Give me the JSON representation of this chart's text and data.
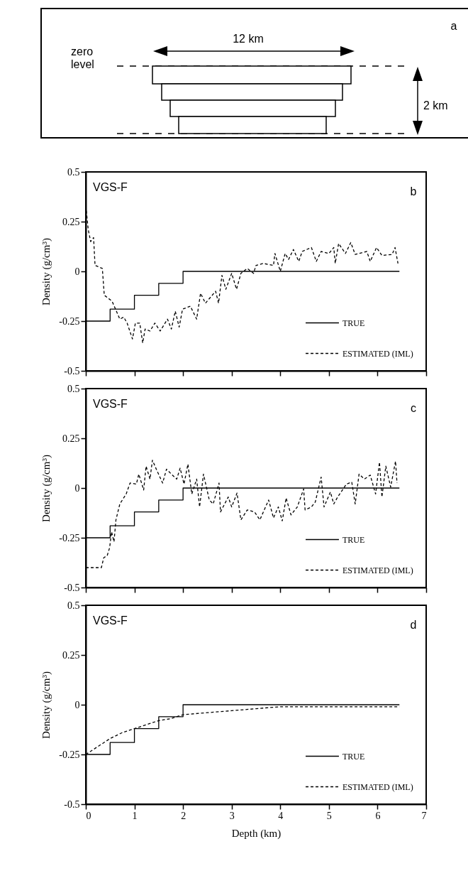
{
  "chart_data": [
    {
      "type": "other",
      "annotations": [
        "12 km",
        "zero level",
        "2 km",
        "a"
      ]
    },
    {
      "type": "line",
      "ylabel": "Density  (g/cm³)",
      "annotations": [
        "VGS-F",
        "b"
      ],
      "xlim": [
        0,
        7
      ],
      "xticks": [
        0,
        1,
        2,
        3,
        4,
        5,
        6,
        7
      ],
      "ylim": [
        -0.5,
        0.5
      ],
      "yticks": [
        -0.5,
        -0.25,
        0,
        0.25,
        0.5
      ],
      "tick_labels": "y",
      "legend": "bottom right",
      "grid": false,
      "series": [
        {
          "name": "TRUE",
          "type": "step",
          "color": "#000000",
          "line_style": "solid",
          "x": [
            0,
            0.5,
            1,
            1.5,
            2,
            6.45
          ],
          "values": [
            -0.25,
            -0.19,
            -0.12,
            -0.06,
            0,
            0
          ]
        },
        {
          "name": "ESTIMATED (IML)",
          "type": "line",
          "color": "#000000",
          "line_style": "dashed",
          "x": [
            0,
            0.05,
            0.1,
            0.16,
            0.19,
            0.34,
            0.38,
            0.54,
            0.7,
            0.78,
            0.85,
            0.96,
            1.02,
            1.11,
            1.17,
            1.22,
            1.32,
            1.42,
            1.53,
            1.68,
            1.76,
            1.84,
            1.92,
            1.99,
            2.15,
            2.28,
            2.36,
            2.46,
            2.67,
            2.73,
            2.8,
            2.88,
            3.0,
            3.1,
            3.19,
            3.32,
            3.45,
            3.5,
            3.65,
            3.86,
            3.89,
            4.0,
            4.1,
            4.17,
            4.27,
            4.38,
            4.45,
            4.64,
            4.74,
            4.84,
            5.0,
            5.1,
            5.13,
            5.2,
            5.34,
            5.45,
            5.54,
            5.78,
            5.85,
            5.98,
            6.09,
            6.3,
            6.36,
            6.42
          ],
          "values": [
            0.33,
            0.21,
            0.15,
            0.17,
            0.03,
            0.015,
            -0.12,
            -0.15,
            -0.24,
            -0.23,
            -0.26,
            -0.34,
            -0.26,
            -0.26,
            -0.36,
            -0.29,
            -0.3,
            -0.26,
            -0.3,
            -0.24,
            -0.29,
            -0.2,
            -0.28,
            -0.19,
            -0.175,
            -0.24,
            -0.11,
            -0.16,
            -0.1,
            -0.16,
            -0.02,
            -0.09,
            -0.01,
            -0.09,
            -0.01,
            0.015,
            -0.01,
            0.03,
            0.04,
            0.03,
            0.09,
            0,
            0.09,
            0.06,
            0.11,
            0.05,
            0.1,
            0.12,
            0.05,
            0.1,
            0.09,
            0.12,
            0.04,
            0.14,
            0.09,
            0.145,
            0.085,
            0.1,
            0.05,
            0.12,
            0.08,
            0.085,
            0.12,
            0.04
          ]
        }
      ]
    },
    {
      "type": "line",
      "ylabel": "Density  (g/cm³)",
      "annotations": [
        "VGS-F",
        "c"
      ],
      "xlim": [
        0,
        7
      ],
      "xticks": [
        0,
        1,
        2,
        3,
        4,
        5,
        6,
        7
      ],
      "ylim": [
        -0.5,
        0.5
      ],
      "yticks": [
        -0.5,
        -0.25,
        0,
        0.25,
        0.5
      ],
      "tick_labels": "y",
      "legend": "bottom right",
      "grid": false,
      "series": [
        {
          "name": "TRUE",
          "type": "step",
          "color": "#000000",
          "line_style": "solid",
          "x": [
            0,
            0.5,
            1,
            1.5,
            2,
            6.45
          ],
          "values": [
            -0.25,
            -0.19,
            -0.12,
            -0.06,
            0,
            0
          ]
        },
        {
          "name": "ESTIMATED (IML)",
          "type": "line",
          "color": "#000000",
          "line_style": "dashed",
          "x": [
            0,
            0.32,
            0.37,
            0.44,
            0.49,
            0.53,
            0.58,
            0.62,
            0.7,
            0.83,
            0.91,
            1.04,
            1.09,
            1.19,
            1.24,
            1.32,
            1.37,
            1.45,
            1.58,
            1.66,
            1.76,
            1.87,
            1.94,
            2.02,
            2.1,
            2.18,
            2.28,
            2.34,
            2.42,
            2.54,
            2.62,
            2.74,
            2.77,
            2.93,
            3.0,
            3.11,
            3.19,
            3.32,
            3.47,
            3.58,
            3.76,
            3.86,
            3.96,
            4.04,
            4.12,
            4.22,
            4.35,
            4.48,
            4.51,
            4.64,
            4.72,
            4.84,
            4.9,
            5.03,
            5.1,
            5.18,
            5.36,
            5.47,
            5.54,
            5.62,
            5.73,
            5.85,
            5.96,
            6.04,
            6.09,
            6.17,
            6.27,
            6.37,
            6.4
          ],
          "values": [
            -0.4,
            -0.4,
            -0.35,
            -0.34,
            -0.3,
            -0.22,
            -0.27,
            -0.16,
            -0.08,
            -0.03,
            0.025,
            0.02,
            0.07,
            -0.01,
            0.11,
            0.045,
            0.14,
            0.095,
            0.025,
            0.095,
            0.07,
            0.045,
            0.1,
            0.02,
            0.12,
            -0.03,
            0.045,
            -0.095,
            0.07,
            -0.06,
            -0.08,
            0.025,
            -0.12,
            -0.045,
            -0.095,
            -0.025,
            -0.16,
            -0.11,
            -0.12,
            -0.16,
            -0.06,
            -0.15,
            -0.095,
            -0.165,
            -0.05,
            -0.135,
            -0.095,
            -0.005,
            -0.11,
            -0.095,
            -0.07,
            0.055,
            -0.095,
            -0.02,
            -0.08,
            -0.045,
            0.02,
            0.03,
            -0.08,
            0.07,
            0.045,
            0.065,
            -0.03,
            0.13,
            -0.045,
            0.11,
            0.005,
            0.135,
            0.025
          ]
        }
      ]
    },
    {
      "type": "line",
      "xlabel": "Depth    (km)",
      "ylabel": "Density  (g/cm³)",
      "annotations": [
        "VGS-F",
        "d"
      ],
      "xlim": [
        0,
        7
      ],
      "xticks": [
        0,
        1,
        2,
        3,
        4,
        5,
        6,
        7
      ],
      "ylim": [
        -0.5,
        0.5
      ],
      "yticks": [
        -0.5,
        -0.25,
        0,
        0.25,
        0.5
      ],
      "legend": "bottom right",
      "grid": false,
      "series": [
        {
          "name": "TRUE",
          "type": "step",
          "color": "#000000",
          "line_style": "solid",
          "x": [
            0,
            0.5,
            1,
            1.5,
            2,
            6.45
          ],
          "values": [
            -0.25,
            -0.19,
            -0.12,
            -0.06,
            0,
            0
          ]
        },
        {
          "name": "ESTIMATED (IML)",
          "type": "line",
          "color": "#000000",
          "line_style": "dashed",
          "x": [
            0,
            0.25,
            0.5,
            0.75,
            1,
            1.25,
            1.5,
            1.75,
            2,
            2.5,
            3,
            3.5,
            4,
            5,
            6.45
          ],
          "values": [
            -0.25,
            -0.21,
            -0.17,
            -0.14,
            -0.12,
            -0.1,
            -0.08,
            -0.07,
            -0.05,
            -0.04,
            -0.03,
            -0.02,
            -0.01,
            -0.01,
            -0.01
          ]
        }
      ]
    }
  ]
}
